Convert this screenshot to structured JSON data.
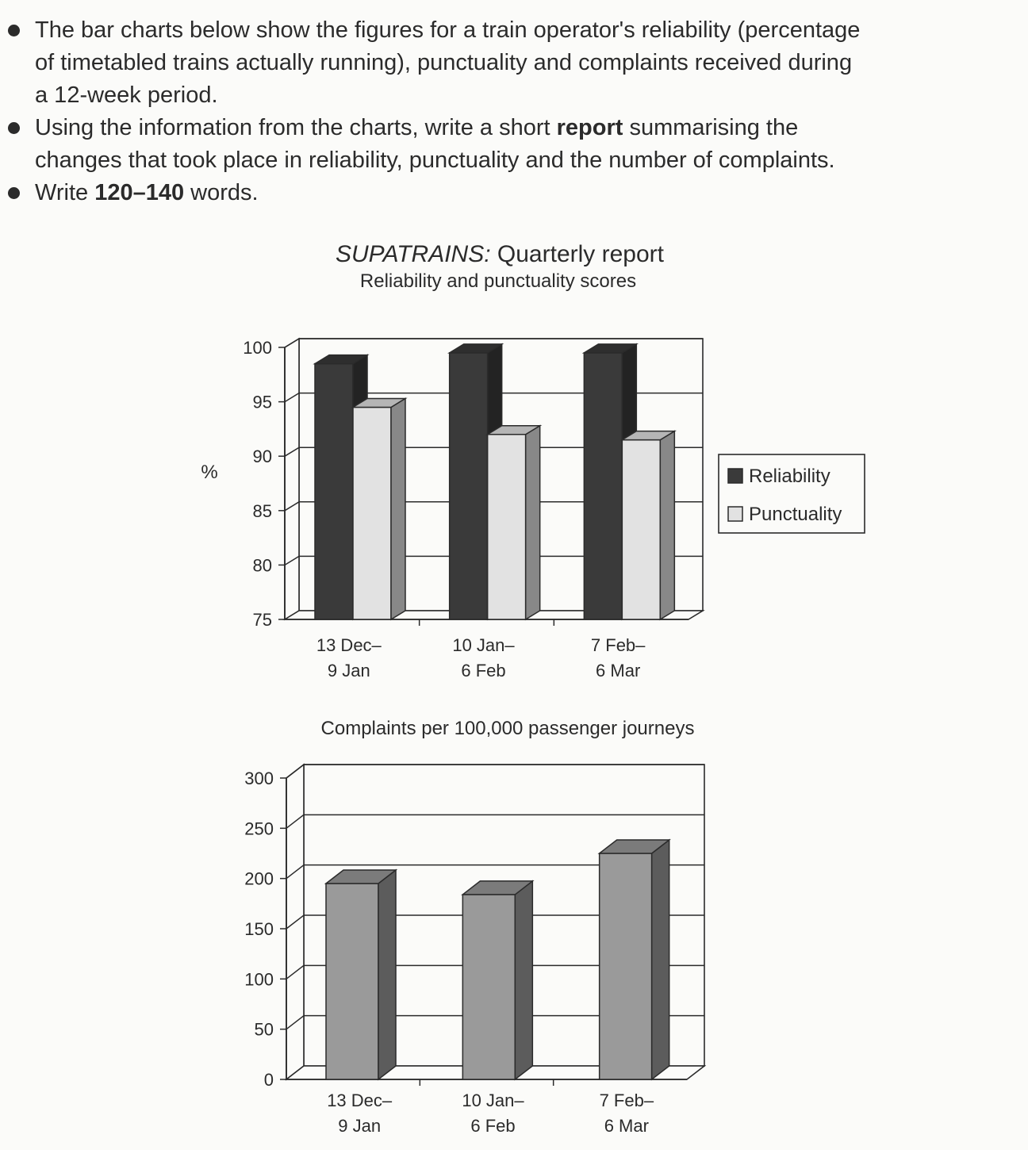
{
  "instructions": [
    {
      "parts": [
        "The bar charts below show the figures for a train operator's reliability (percentage",
        "of timetabled trains actually running), punctuality and complaints received during",
        "a 12-week period."
      ]
    },
    {
      "pre": "Using the information from the charts, write a short ",
      "bold": "report",
      "post": " summarising the",
      "line2": "changes that took place in reliability, punctuality and the number of complaints."
    },
    {
      "pre": "Write ",
      "bold": "120–140",
      "post": " words."
    }
  ],
  "colors": {
    "reliability": "#3a3a3a",
    "punctuality": "#e2e2e2",
    "complaints": "#9a9a9a",
    "frame": "#2b2b2b"
  },
  "chart_data": [
    {
      "type": "bar",
      "title_italic": "SUPATRAINS:",
      "title_rest": " Quarterly report",
      "subtitle": "Reliability and punctuality scores",
      "ylabel": "%",
      "ylim": [
        75,
        100
      ],
      "yticks": [
        100,
        95,
        90,
        85,
        80,
        75
      ],
      "categories": [
        [
          "13 Dec–",
          "9 Jan"
        ],
        [
          "10 Jan–",
          "6 Feb"
        ],
        [
          "7 Feb–",
          "6 Mar"
        ]
      ],
      "series": [
        {
          "name": "Reliability",
          "values": [
            98.5,
            99.5,
            99.5
          ]
        },
        {
          "name": "Punctuality",
          "values": [
            94.5,
            92,
            91.5
          ]
        }
      ],
      "legend_position": "right"
    },
    {
      "type": "bar",
      "title": "Complaints per 100,000 passenger journeys",
      "ylim": [
        0,
        300
      ],
      "yticks": [
        300,
        250,
        200,
        150,
        100,
        50,
        0
      ],
      "categories": [
        [
          "13 Dec–",
          "9 Jan"
        ],
        [
          "10 Jan–",
          "6 Feb"
        ],
        [
          "7 Feb–",
          "6 Mar"
        ]
      ],
      "values": [
        195,
        184,
        225
      ]
    }
  ]
}
